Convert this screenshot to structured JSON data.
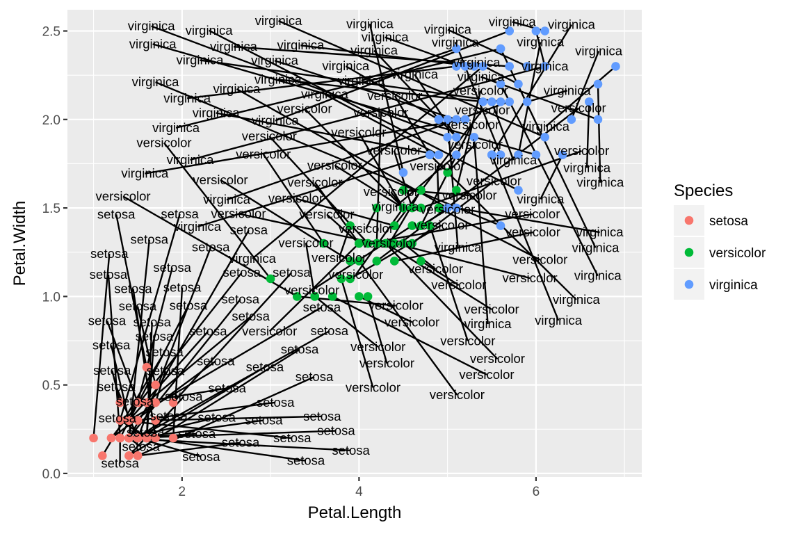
{
  "chart_data": {
    "type": "scatter",
    "xlabel": "Petal.Length",
    "ylabel": "Petal.Width",
    "xlim": [
      0.705,
      7.195
    ],
    "ylim": [
      -0.02,
      2.62
    ],
    "x_ticks": [
      2,
      4,
      6
    ],
    "y_ticks": [
      "0.0",
      "0.5",
      "1.0",
      "1.5",
      "2.0",
      "2.5"
    ],
    "grid": true,
    "legend": {
      "title": "Species",
      "position": "right",
      "entries": [
        {
          "name": "setosa",
          "color": "#F8766D"
        },
        {
          "name": "versicolor",
          "color": "#00BA38"
        },
        {
          "name": "virginica",
          "color": "#619CFF"
        }
      ]
    },
    "series": [
      {
        "name": "setosa",
        "color": "#F8766D",
        "x": [
          1.4,
          1.4,
          1.3,
          1.5,
          1.4,
          1.7,
          1.4,
          1.5,
          1.4,
          1.5,
          1.5,
          1.6,
          1.4,
          1.1,
          1.2,
          1.5,
          1.3,
          1.4,
          1.7,
          1.5,
          1.7,
          1.5,
          1.0,
          1.7,
          1.9,
          1.6,
          1.6,
          1.5,
          1.4,
          1.6,
          1.6,
          1.5,
          1.5,
          1.4,
          1.5,
          1.2,
          1.3,
          1.4,
          1.3,
          1.5,
          1.3,
          1.3,
          1.3,
          1.6,
          1.9,
          1.4,
          1.6,
          1.4,
          1.5,
          1.4
        ],
        "y": [
          0.2,
          0.2,
          0.2,
          0.2,
          0.2,
          0.4,
          0.3,
          0.2,
          0.2,
          0.1,
          0.2,
          0.2,
          0.1,
          0.1,
          0.2,
          0.4,
          0.4,
          0.3,
          0.3,
          0.3,
          0.2,
          0.4,
          0.2,
          0.5,
          0.2,
          0.2,
          0.4,
          0.2,
          0.2,
          0.2,
          0.2,
          0.4,
          0.1,
          0.2,
          0.2,
          0.2,
          0.2,
          0.1,
          0.2,
          0.2,
          0.3,
          0.3,
          0.2,
          0.6,
          0.4,
          0.3,
          0.2,
          0.2,
          0.2,
          0.2
        ]
      },
      {
        "name": "versicolor",
        "color": "#00BA38",
        "x": [
          4.7,
          4.5,
          4.9,
          4.0,
          4.6,
          4.5,
          4.7,
          3.3,
          4.6,
          3.9,
          3.5,
          4.2,
          4.0,
          4.7,
          3.6,
          4.4,
          4.5,
          4.1,
          4.5,
          3.9,
          4.8,
          4.0,
          4.9,
          4.7,
          4.3,
          4.4,
          4.8,
          5.0,
          4.5,
          3.5,
          3.8,
          3.7,
          3.9,
          5.1,
          4.5,
          4.5,
          4.7,
          4.4,
          4.1,
          4.0,
          4.4,
          4.6,
          4.0,
          3.3,
          4.2,
          4.2,
          4.2,
          4.3,
          3.0,
          4.1
        ],
        "y": [
          1.4,
          1.5,
          1.5,
          1.3,
          1.5,
          1.3,
          1.6,
          1.0,
          1.3,
          1.4,
          1.0,
          1.5,
          1.0,
          1.4,
          1.3,
          1.4,
          1.5,
          1.0,
          1.5,
          1.1,
          1.8,
          1.3,
          1.5,
          1.2,
          1.3,
          1.4,
          1.4,
          1.7,
          1.5,
          1.0,
          1.1,
          1.0,
          1.2,
          1.6,
          1.5,
          1.6,
          1.5,
          1.3,
          1.3,
          1.3,
          1.2,
          1.4,
          1.2,
          1.0,
          1.3,
          1.2,
          1.3,
          1.3,
          1.1,
          1.3
        ]
      },
      {
        "name": "virginica",
        "color": "#619CFF",
        "x": [
          6.0,
          5.1,
          5.9,
          5.6,
          5.8,
          6.6,
          4.5,
          6.3,
          5.8,
          6.1,
          5.1,
          5.3,
          5.5,
          5.0,
          5.1,
          5.3,
          5.5,
          6.7,
          6.9,
          5.0,
          5.7,
          4.9,
          6.7,
          4.9,
          5.7,
          6.0,
          4.8,
          4.9,
          5.6,
          5.8,
          6.1,
          6.4,
          5.6,
          5.1,
          5.6,
          6.1,
          5.6,
          5.5,
          4.8,
          5.4,
          5.6,
          5.1,
          5.1,
          5.9,
          5.7,
          5.2,
          5.0,
          5.2,
          5.4,
          5.1
        ],
        "y": [
          2.5,
          1.9,
          2.1,
          1.8,
          2.2,
          2.1,
          1.7,
          1.8,
          1.8,
          2.5,
          2.0,
          1.9,
          2.1,
          2.0,
          2.4,
          2.3,
          1.8,
          2.2,
          2.3,
          1.5,
          2.3,
          2.0,
          2.0,
          1.8,
          2.1,
          1.8,
          1.8,
          1.8,
          2.1,
          1.6,
          1.9,
          2.0,
          2.2,
          1.5,
          1.4,
          2.3,
          2.4,
          1.8,
          1.8,
          2.1,
          2.4,
          2.3,
          1.9,
          2.3,
          2.5,
          2.3,
          1.9,
          2.0,
          2.3,
          1.8
        ]
      }
    ]
  }
}
